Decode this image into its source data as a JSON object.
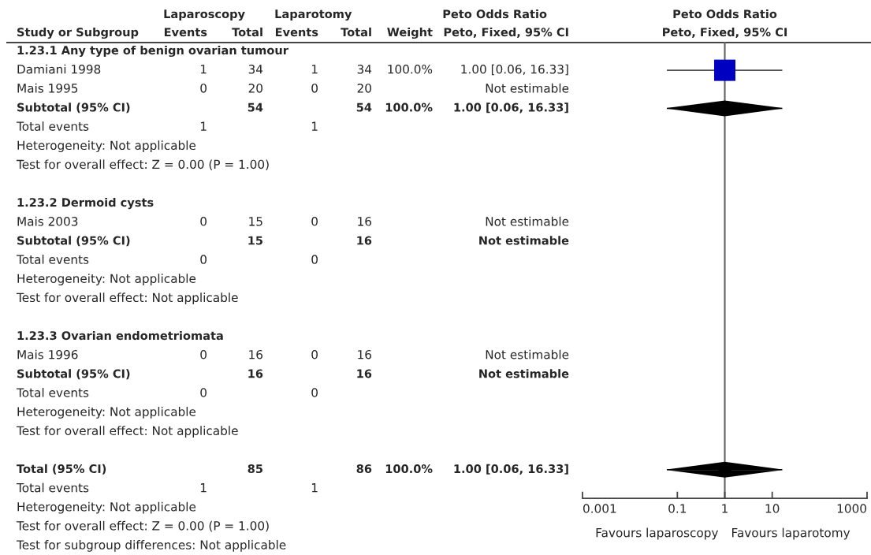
{
  "chart_data": [
    {
      "type": "other",
      "ylabel": "Study or Subgroup",
      "categories": [
        "Events",
        "Total",
        "Events",
        "Total",
        "Weight",
        "Peto, Fixed, 95% CI"
      ],
      "annotations": [
        "Laparoscopy",
        "Laparotomy",
        "Peto Odds Ratio"
      ],
      "y_categories": [
        "1.23.1 Any type of benign ovarian tumour",
        "Damiani 1998",
        "Mais 1995",
        "Subtotal (95% CI)",
        "Total events",
        "Heterogeneity: Not applicable",
        "Test for overall effect: Z = 0.00 (P = 1.00)",
        null,
        "1.23.2 Dermoid cysts",
        "Mais 2003",
        "Subtotal (95% CI)",
        "Total events",
        "Heterogeneity: Not applicable",
        "Test for overall effect: Not applicable",
        null,
        "1.23.3 Ovarian endometriomata",
        "Mais 1996",
        "Subtotal (95% CI)",
        "Total events",
        "Heterogeneity: Not applicable",
        "Test for overall effect: Not applicable",
        null,
        "Total (95% CI)",
        "Total events",
        "Heterogeneity: Not applicable",
        "Test for overall effect: Z = 0.00 (P = 1.00)",
        "Test for subgroup differences: Not applicable"
      ],
      "cell_labels": [
        [
          null,
          null,
          null,
          null,
          null,
          null
        ],
        [
          "1",
          "34",
          "1",
          "34",
          "100.0%",
          "1.00 [0.06, 16.33]"
        ],
        [
          "0",
          "20",
          "0",
          "20",
          null,
          "Not estimable"
        ],
        [
          null,
          "54",
          null,
          "54",
          "100.0%",
          "1.00 [0.06, 16.33]"
        ],
        [
          "1",
          null,
          "1",
          null,
          null,
          null
        ],
        [
          null,
          null,
          null,
          null,
          null,
          null
        ],
        [
          null,
          null,
          null,
          null,
          null,
          null
        ],
        [
          null,
          null,
          null,
          null,
          null,
          null
        ],
        [
          null,
          null,
          null,
          null,
          null,
          null
        ],
        [
          "0",
          "15",
          "0",
          "16",
          null,
          "Not estimable"
        ],
        [
          null,
          "15",
          null,
          "16",
          null,
          "Not estimable"
        ],
        [
          "0",
          null,
          "0",
          null,
          null,
          null
        ],
        [
          null,
          null,
          null,
          null,
          null,
          null
        ],
        [
          null,
          null,
          null,
          null,
          null,
          null
        ],
        [
          null,
          null,
          null,
          null,
          null,
          null
        ],
        [
          null,
          null,
          null,
          null,
          null,
          null
        ],
        [
          "0",
          "16",
          "0",
          "16",
          null,
          "Not estimable"
        ],
        [
          null,
          "16",
          null,
          "16",
          null,
          "Not estimable"
        ],
        [
          "0",
          null,
          "0",
          null,
          null,
          null
        ],
        [
          null,
          null,
          null,
          null,
          null,
          null
        ],
        [
          null,
          null,
          null,
          null,
          null,
          null
        ],
        [
          null,
          null,
          null,
          null,
          null,
          null
        ],
        [
          null,
          "85",
          null,
          "86",
          "100.0%",
          "1.00 [0.06, 16.33]"
        ],
        [
          "1",
          null,
          "1",
          null,
          null,
          null
        ],
        [
          null,
          null,
          null,
          null,
          null,
          null
        ],
        [
          null,
          null,
          null,
          null,
          null,
          null
        ],
        [
          null,
          null,
          null,
          null,
          null,
          null
        ]
      ]
    },
    {
      "type": "scatter",
      "title": "Peto Odds Ratio",
      "subtitle": "Peto, Fixed, 95% CI",
      "orientation": "horizontal",
      "log": "x",
      "xlim": [
        0.001,
        1000
      ],
      "xticks": [
        0.001,
        0.1,
        1,
        10,
        1000
      ],
      "categories": [
        null,
        null,
        null,
        null,
        null,
        null,
        null,
        null,
        null,
        null,
        null,
        null,
        null,
        null,
        null,
        null,
        null,
        null,
        null,
        null,
        null,
        null,
        null,
        null
      ],
      "series": [
        {
          "color": "#0000c0",
          "marker": "square",
          "values": [
            null,
            1.0,
            null,
            null,
            null,
            null,
            null,
            null,
            null,
            null,
            null,
            null,
            null,
            null,
            null,
            null,
            null,
            null,
            null,
            null,
            null,
            null,
            null,
            null
          ],
          "errors": [
            null,
            [
              0.06,
              16.33
            ],
            null,
            null,
            null,
            null,
            null,
            null,
            null,
            null,
            null,
            null,
            null,
            null,
            null,
            null,
            null,
            null,
            null,
            null,
            null,
            null,
            null,
            null
          ]
        },
        {
          "color": "#000000",
          "marker": "diamond",
          "values": [
            null,
            null,
            null,
            1.0,
            null,
            null,
            null,
            null,
            null,
            null,
            null,
            null,
            null,
            null,
            null,
            null,
            null,
            null,
            null,
            null,
            null,
            null,
            1.0,
            null
          ],
          "errors": [
            null,
            null,
            null,
            [
              0.06,
              16.33
            ],
            null,
            null,
            null,
            null,
            null,
            null,
            null,
            null,
            null,
            null,
            null,
            null,
            null,
            null,
            null,
            null,
            null,
            null,
            [
              0.06,
              16.33
            ],
            null
          ]
        }
      ],
      "ref_lines": [
        {
          "axis": "x",
          "value": 1,
          "color": "#606060"
        }
      ],
      "annotations": [
        "Favours laparoscopy",
        "Favours laparotomy"
      ]
    }
  ]
}
